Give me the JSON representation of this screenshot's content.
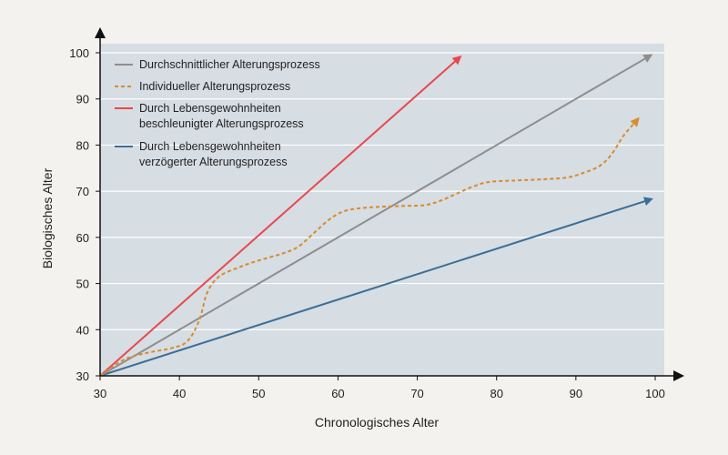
{
  "chart_data": {
    "type": "line",
    "xlabel": "Chronologisches Alter",
    "ylabel": "Biologisches Alter",
    "xlim": [
      30,
      100
    ],
    "ylim": [
      30,
      100
    ],
    "x_ticks": [
      30,
      40,
      50,
      60,
      70,
      80,
      90,
      100
    ],
    "y_ticks": [
      30,
      40,
      50,
      60,
      70,
      80,
      90,
      100
    ],
    "grid": "horizontal",
    "legend_position": "top-left",
    "background_color": "#d6dde3",
    "series": [
      {
        "name": "Durchschnittlicher Alterungsprozess",
        "style": "solid-arrow",
        "color": "#8e8e8e",
        "points": [
          [
            30,
            30
          ],
          [
            99,
            99
          ]
        ]
      },
      {
        "name": "Individueller Alterungsprozess",
        "style": "dashed-arrow",
        "color": "#d98a2b",
        "points": [
          [
            30,
            30
          ],
          [
            33,
            33.5
          ],
          [
            36,
            35
          ],
          [
            39,
            36
          ],
          [
            41,
            37.5
          ],
          [
            42.5,
            42
          ],
          [
            43.5,
            48
          ],
          [
            45,
            51.5
          ],
          [
            47.5,
            53.5
          ],
          [
            50,
            55
          ],
          [
            53,
            56.5
          ],
          [
            55,
            58
          ],
          [
            57,
            61
          ],
          [
            59,
            64
          ],
          [
            61,
            65.8
          ],
          [
            64,
            66.5
          ],
          [
            68,
            66.8
          ],
          [
            71,
            67
          ],
          [
            73,
            68
          ],
          [
            75,
            69.5
          ],
          [
            77,
            71
          ],
          [
            79,
            72
          ],
          [
            82,
            72.3
          ],
          [
            86,
            72.6
          ],
          [
            89,
            73
          ],
          [
            91,
            74
          ],
          [
            93,
            75.5
          ],
          [
            94.5,
            78
          ],
          [
            96,
            82
          ],
          [
            97.5,
            85
          ]
        ]
      },
      {
        "name": "Durch Lebensgewohnheiten\nbeschleunigter Alterungsprozess",
        "name_lines": [
          "Durch Lebensgewohnheiten",
          "beschleunigter Alterungsprozess"
        ],
        "style": "solid-arrow",
        "color": "#e8484c",
        "points": [
          [
            30,
            30
          ],
          [
            75,
            98.5
          ]
        ]
      },
      {
        "name": "Durch Lebensgewohnheiten\nverzögerter Alterungsprozess",
        "name_lines": [
          "Durch Lebensgewohnheiten",
          "verzögerter Alterungsprozess"
        ],
        "style": "solid-arrow",
        "color": "#3a6e96",
        "points": [
          [
            30,
            30
          ],
          [
            99,
            68
          ]
        ]
      }
    ]
  }
}
